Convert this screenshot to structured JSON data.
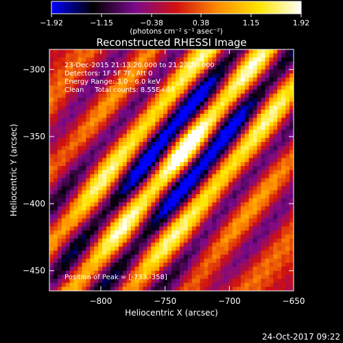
{
  "chart_data": {
    "type": "heatmap",
    "title": "Reconstructed RHESSI Image",
    "xlabel": "Heliocentric X (arcsec)",
    "ylabel": "Heliocentric Y (arcsec)",
    "xlim": [
      -840,
      -650
    ],
    "ylim": [
      -465,
      -285
    ],
    "x_ticks": [
      {
        "value": -800,
        "label": "−800"
      },
      {
        "value": -750,
        "label": "−750"
      },
      {
        "value": -700,
        "label": "−700"
      },
      {
        "value": -650,
        "label": "−650"
      }
    ],
    "y_ticks": [
      {
        "value": -300,
        "label": "−300"
      },
      {
        "value": -350,
        "label": "−350"
      },
      {
        "value": -400,
        "label": "−400"
      },
      {
        "value": -450,
        "label": "−450"
      }
    ],
    "colorbar": {
      "min": -1.92,
      "max": 1.92,
      "ticks": [
        {
          "value": -1.92,
          "label": "−1.92"
        },
        {
          "value": -1.15,
          "label": "−1.15"
        },
        {
          "value": -0.38,
          "label": "−0.38"
        },
        {
          "value": 0.38,
          "label": "0.38"
        },
        {
          "value": 1.15,
          "label": "1.15"
        },
        {
          "value": 1.92,
          "label": "1.92"
        }
      ],
      "unit_label": "(photons cm⁻² s⁻¹ asec⁻²)",
      "colors": [
        "#0000ff",
        "#000000",
        "#7a0a8c",
        "#d01010",
        "#ff8c00",
        "#ffe600",
        "#ffffff"
      ]
    },
    "annotations": [
      "23-Dec-2015 21:13:20.000 to 21:23:20.000",
      "Detectors: 1F 5F 7F, Att 0",
      "Energy Range: 3.0 - 6.0 keV",
      "Clean     Total counts: 8.55E+04"
    ],
    "peak_label": "Position of Peak = [-733,-358]",
    "peak": {
      "x": -733,
      "y": -358
    },
    "footer_date": "24-Oct-2017 09:22"
  }
}
